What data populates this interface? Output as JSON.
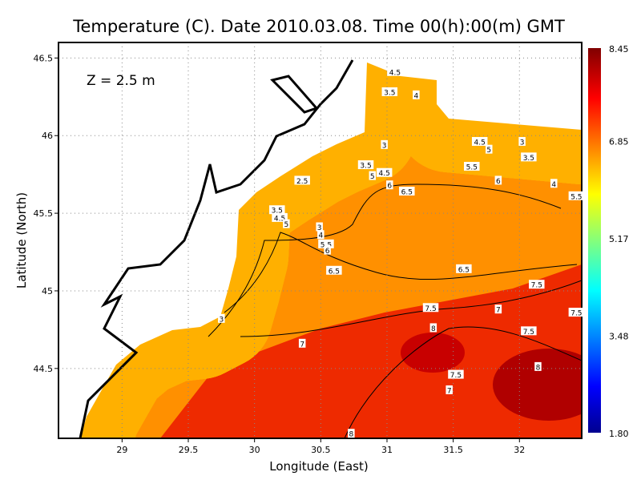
{
  "chart_data": {
    "type": "heatmap",
    "subtype": "filled contour map",
    "title": "Temperature (C). Date 2010.03.08. Time 00(h):00(m) GMT",
    "xlabel": "Longitude (East)",
    "ylabel": "Latitude (North)",
    "annotation": "Z = 2.5 m",
    "xlim": [
      28.52,
      32.47
    ],
    "ylim": [
      44.05,
      46.6
    ],
    "xticks": [
      "29",
      "29.5",
      "30",
      "30.5",
      "31",
      "31.5",
      "32"
    ],
    "yticks": [
      "46.5",
      "46",
      "45.5",
      "45",
      "44.5"
    ],
    "grid": true,
    "colorbar": {
      "range": [
        1.8,
        8.45
      ],
      "ticks": [
        "8.45",
        "6.85",
        "5.17",
        "3.48",
        "1.80"
      ],
      "colormap": "jet"
    },
    "contour_labels": [
      {
        "lon": 31.06,
        "lat": 46.41,
        "v": "4.5"
      },
      {
        "lon": 31.02,
        "lat": 46.28,
        "v": "3.5"
      },
      {
        "lon": 31.22,
        "lat": 46.26,
        "v": "4"
      },
      {
        "lon": 30.98,
        "lat": 45.94,
        "v": "3"
      },
      {
        "lon": 31.7,
        "lat": 45.96,
        "v": "4.5"
      },
      {
        "lon": 31.77,
        "lat": 45.91,
        "v": "5"
      },
      {
        "lon": 32.02,
        "lat": 45.96,
        "v": "3"
      },
      {
        "lon": 32.07,
        "lat": 45.86,
        "v": "3.5"
      },
      {
        "lon": 30.84,
        "lat": 45.81,
        "v": "3.5"
      },
      {
        "lon": 30.89,
        "lat": 45.74,
        "v": "5"
      },
      {
        "lon": 30.98,
        "lat": 45.76,
        "v": "4.5"
      },
      {
        "lon": 31.64,
        "lat": 45.8,
        "v": "5.5"
      },
      {
        "lon": 31.84,
        "lat": 45.71,
        "v": "6"
      },
      {
        "lon": 32.26,
        "lat": 45.69,
        "v": "4"
      },
      {
        "lon": 32.43,
        "lat": 45.61,
        "v": "5.5"
      },
      {
        "lon": 31.02,
        "lat": 45.68,
        "v": "6"
      },
      {
        "lon": 31.15,
        "lat": 45.64,
        "v": "6.5"
      },
      {
        "lon": 30.36,
        "lat": 45.71,
        "v": "2.5"
      },
      {
        "lon": 30.17,
        "lat": 45.52,
        "v": "3.5"
      },
      {
        "lon": 30.19,
        "lat": 45.47,
        "v": "4.5"
      },
      {
        "lon": 30.24,
        "lat": 45.43,
        "v": "5"
      },
      {
        "lon": 30.49,
        "lat": 45.41,
        "v": "3"
      },
      {
        "lon": 30.5,
        "lat": 45.36,
        "v": "4"
      },
      {
        "lon": 30.54,
        "lat": 45.3,
        "v": "5.5"
      },
      {
        "lon": 30.55,
        "lat": 45.26,
        "v": "6"
      },
      {
        "lon": 30.6,
        "lat": 45.13,
        "v": "6.5"
      },
      {
        "lon": 31.58,
        "lat": 45.14,
        "v": "6.5"
      },
      {
        "lon": 32.13,
        "lat": 45.04,
        "v": "7.5"
      },
      {
        "lon": 31.33,
        "lat": 44.89,
        "v": "7.5"
      },
      {
        "lon": 31.84,
        "lat": 44.88,
        "v": "7"
      },
      {
        "lon": 32.43,
        "lat": 44.86,
        "v": "7.5"
      },
      {
        "lon": 31.35,
        "lat": 44.76,
        "v": "8"
      },
      {
        "lon": 32.07,
        "lat": 44.74,
        "v": "7.5"
      },
      {
        "lon": 30.36,
        "lat": 44.66,
        "v": "7"
      },
      {
        "lon": 29.75,
        "lat": 44.82,
        "v": "3"
      },
      {
        "lon": 31.52,
        "lat": 44.46,
        "v": "7.5"
      },
      {
        "lon": 32.14,
        "lat": 44.51,
        "v": "8"
      },
      {
        "lon": 31.47,
        "lat": 44.36,
        "v": "7"
      },
      {
        "lon": 30.73,
        "lat": 44.08,
        "v": "8"
      }
    ]
  }
}
